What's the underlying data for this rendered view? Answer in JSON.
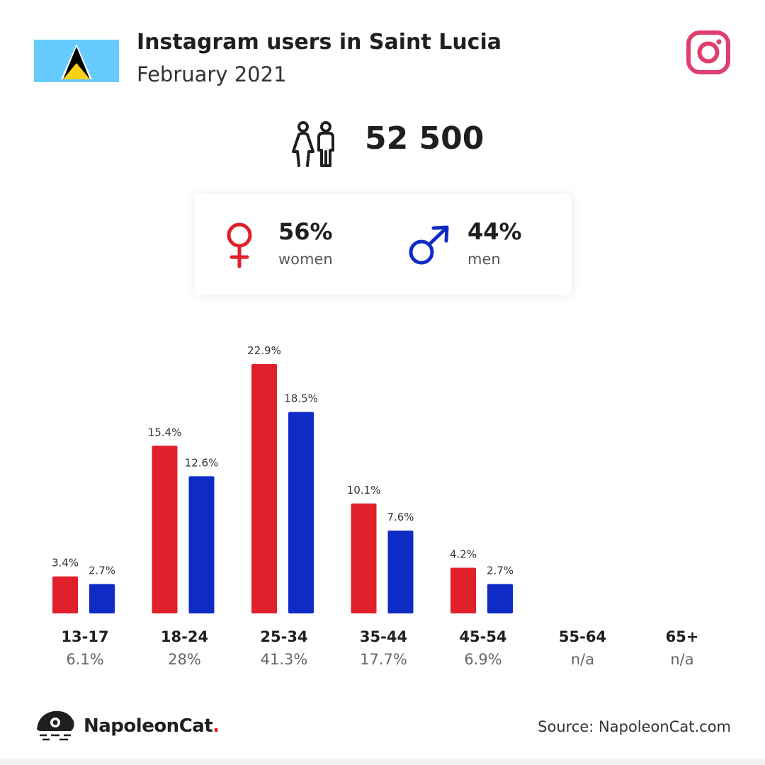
{
  "header": {
    "title": "Instagram users in Saint Lucia",
    "subtitle": "February 2021"
  },
  "summary": {
    "total": "52 500",
    "women_pct": "56%",
    "women_label": "women",
    "men_pct": "44%",
    "men_label": "men"
  },
  "colors": {
    "women": "#e0202a",
    "men": "#0f2bc6",
    "instagram": "#e03e6f",
    "flag_blue": "#66ccff",
    "flag_yellow": "#fcd116"
  },
  "icons": {
    "flag": "saint-lucia-flag-icon",
    "instagram": "instagram-icon",
    "people": "people-icon",
    "female": "female-symbol-icon",
    "male": "male-symbol-icon",
    "brand": "napoleoncat-logo-icon"
  },
  "chart_data": {
    "type": "bar",
    "categories": [
      "13-17",
      "18-24",
      "25-34",
      "35-44",
      "45-54",
      "55-64",
      "65+"
    ],
    "category_totals": [
      "6.1%",
      "28%",
      "41.3%",
      "17.7%",
      "6.9%",
      "n/a",
      "n/a"
    ],
    "series": [
      {
        "values": [
          3.4,
          15.4,
          22.9,
          10.1,
          4.2,
          null,
          null
        ],
        "labels": [
          "3.4%",
          "15.4%",
          "22.9%",
          "10.1%",
          "4.2%",
          "",
          ""
        ],
        "color": "#e0202a"
      },
      {
        "values": [
          2.7,
          12.6,
          18.5,
          7.6,
          2.7,
          null,
          null
        ],
        "labels": [
          "2.7%",
          "12.6%",
          "18.5%",
          "7.6%",
          "2.7%",
          "",
          ""
        ],
        "color": "#0f2bc6"
      }
    ],
    "ylim": [
      0,
      22.9
    ],
    "grid": false,
    "legend": "none"
  },
  "footer": {
    "brand": "NapoleonCat",
    "brand_dot": ".",
    "source": "Source: NapoleonCat.com"
  }
}
